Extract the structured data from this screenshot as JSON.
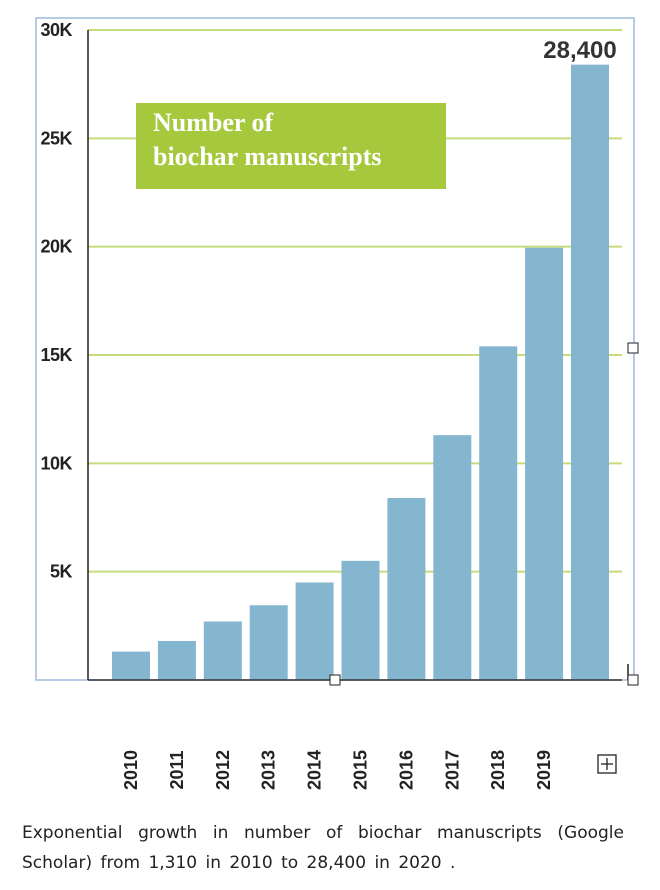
{
  "chart_data": {
    "type": "bar",
    "title": [
      "Number of",
      "biochar manuscripts"
    ],
    "categories": [
      "2010",
      "2011",
      "2012",
      "2013",
      "2014",
      "2015",
      "2016",
      "2017",
      "2018",
      "2019",
      ""
    ],
    "values": [
      1310,
      1800,
      2700,
      3450,
      4500,
      5500,
      8400,
      11300,
      15400,
      19950,
      28400
    ],
    "yticks": [
      {
        "value": 5000,
        "label": "5K"
      },
      {
        "value": 10000,
        "label": "10K"
      },
      {
        "value": 15000,
        "label": "15K"
      },
      {
        "value": 20000,
        "label": "20K"
      },
      {
        "value": 25000,
        "label": "25K"
      },
      {
        "value": 30000,
        "label": "30K"
      }
    ],
    "ylim": [
      0,
      30000
    ],
    "peak_label": "28,400",
    "grid": true,
    "colors": {
      "bar": "#85b6cf",
      "grid": "#c5dc7b",
      "title_bg": "#a6c83c",
      "frame": "#9fb8de"
    }
  },
  "caption": "Exponential growth in number of biochar manuscripts (Google Scholar) from 1,310 in 2010 to 28,400 in 2020 ."
}
